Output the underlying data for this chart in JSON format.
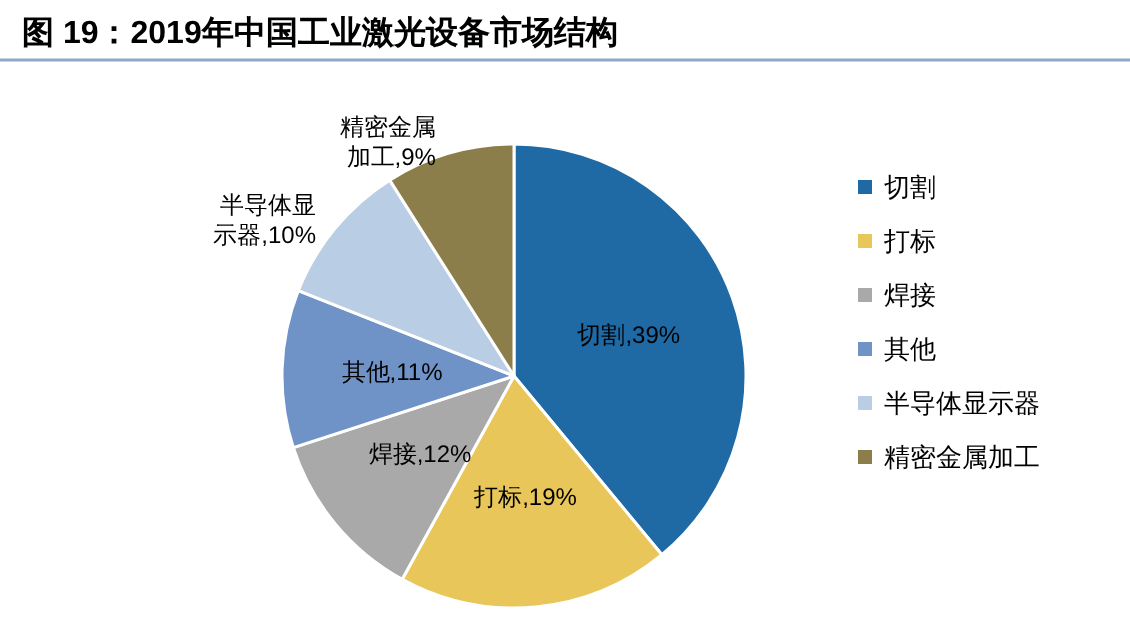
{
  "chart_data": {
    "type": "pie",
    "title": "图 19：2019年中国工业激光设备市场结构",
    "categories": [
      "切割",
      "打标",
      "焊接",
      "其他",
      "半导体显示器",
      "精密金属加工"
    ],
    "values": [
      39,
      19,
      12,
      11,
      10,
      9
    ],
    "colors": [
      "#1f6aa5",
      "#e8c65a",
      "#a9a9a9",
      "#6f93c7",
      "#b9cde5",
      "#8c7e4b"
    ],
    "value_labels": [
      "切割,39%",
      "打标,19%",
      "焊接,12%",
      "其他,11%",
      "半导体显示器,10%",
      "精密金属加工,9%"
    ],
    "legend": "right"
  }
}
